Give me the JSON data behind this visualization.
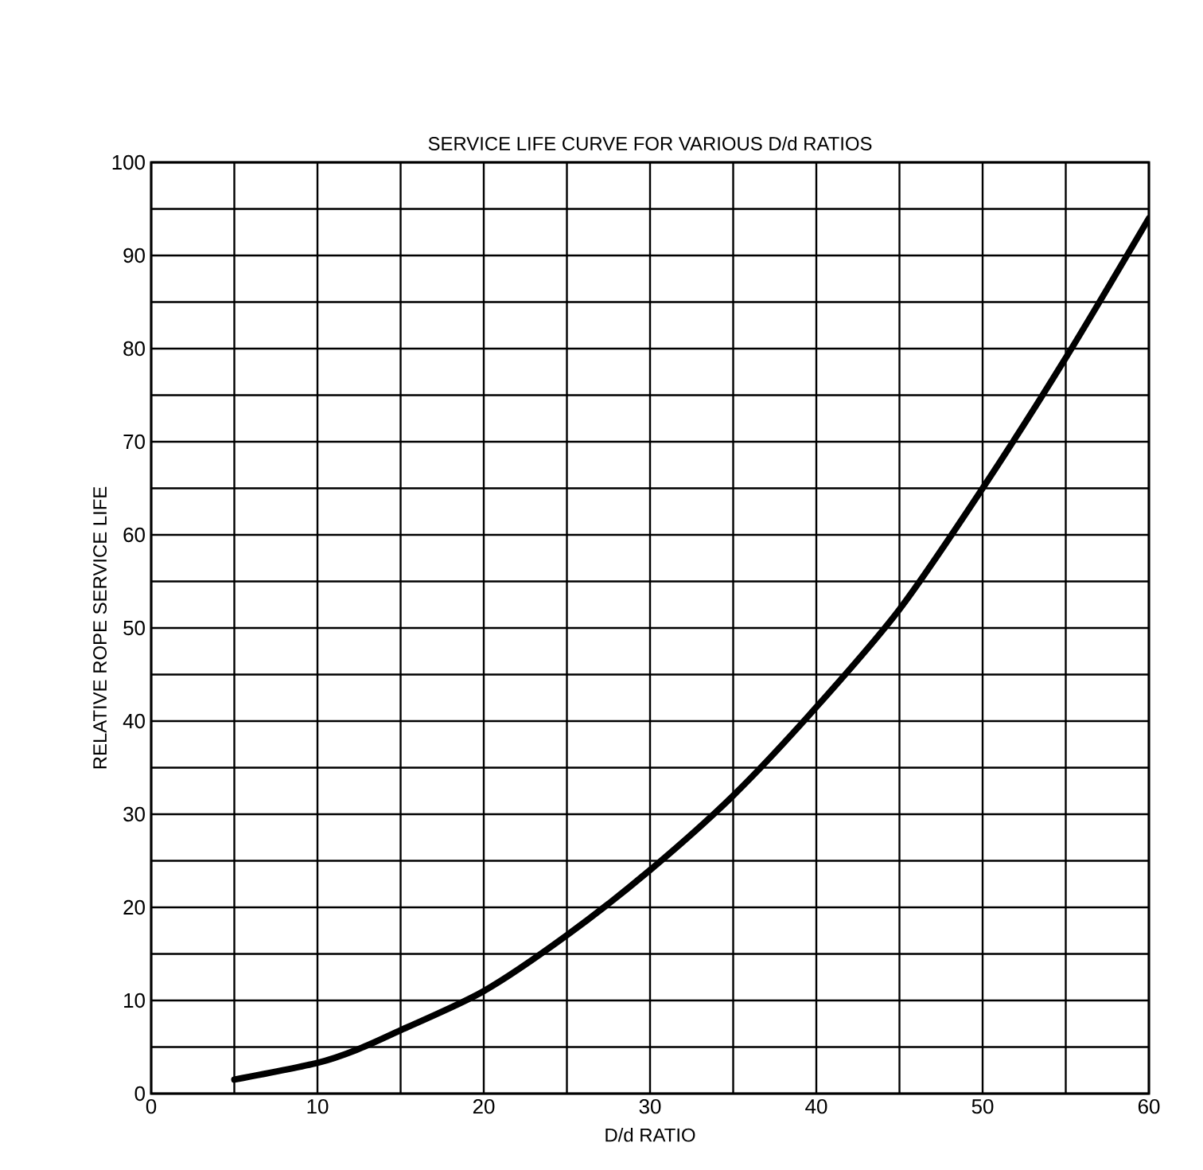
{
  "chart_data": {
    "type": "line",
    "title": "SERVICE LIFE CURVE FOR VARIOUS D/d RATIOS",
    "xlabel": "D/d RATIO",
    "ylabel": "RELATIVE ROPE SERVICE LIFE",
    "x": [
      5,
      10,
      12.5,
      15,
      20,
      25,
      30,
      35,
      40,
      45,
      50,
      55,
      60
    ],
    "series": [
      {
        "color": "#000000",
        "values": [
          1.5,
          3.3,
          4.8,
          6.8,
          11,
          17,
          24,
          32,
          41.5,
          52,
          65,
          79,
          94
        ]
      }
    ],
    "xlim": [
      0,
      60
    ],
    "ylim": [
      0,
      100
    ],
    "xticks": [
      0,
      {
        "value": 5,
        "label": null
      },
      10,
      {
        "value": 15,
        "label": null
      },
      20,
      {
        "value": 25,
        "label": null
      },
      30,
      {
        "value": 35,
        "label": null
      },
      40,
      {
        "value": 45,
        "label": null
      },
      50,
      {
        "value": 55,
        "label": null
      },
      60
    ],
    "yticks": [
      0,
      {
        "value": 5,
        "label": null
      },
      10,
      {
        "value": 15,
        "label": null
      },
      20,
      {
        "value": 25,
        "label": null
      },
      30,
      {
        "value": 35,
        "label": null
      },
      40,
      {
        "value": 45,
        "label": null
      },
      50,
      {
        "value": 55,
        "label": null
      },
      60,
      {
        "value": 65,
        "label": null
      },
      70,
      {
        "value": 75,
        "label": null
      },
      80,
      {
        "value": 85,
        "label": null
      },
      90,
      {
        "value": 95,
        "label": null
      },
      100
    ],
    "grid": true,
    "marker": "none",
    "line_style": "solid"
  }
}
